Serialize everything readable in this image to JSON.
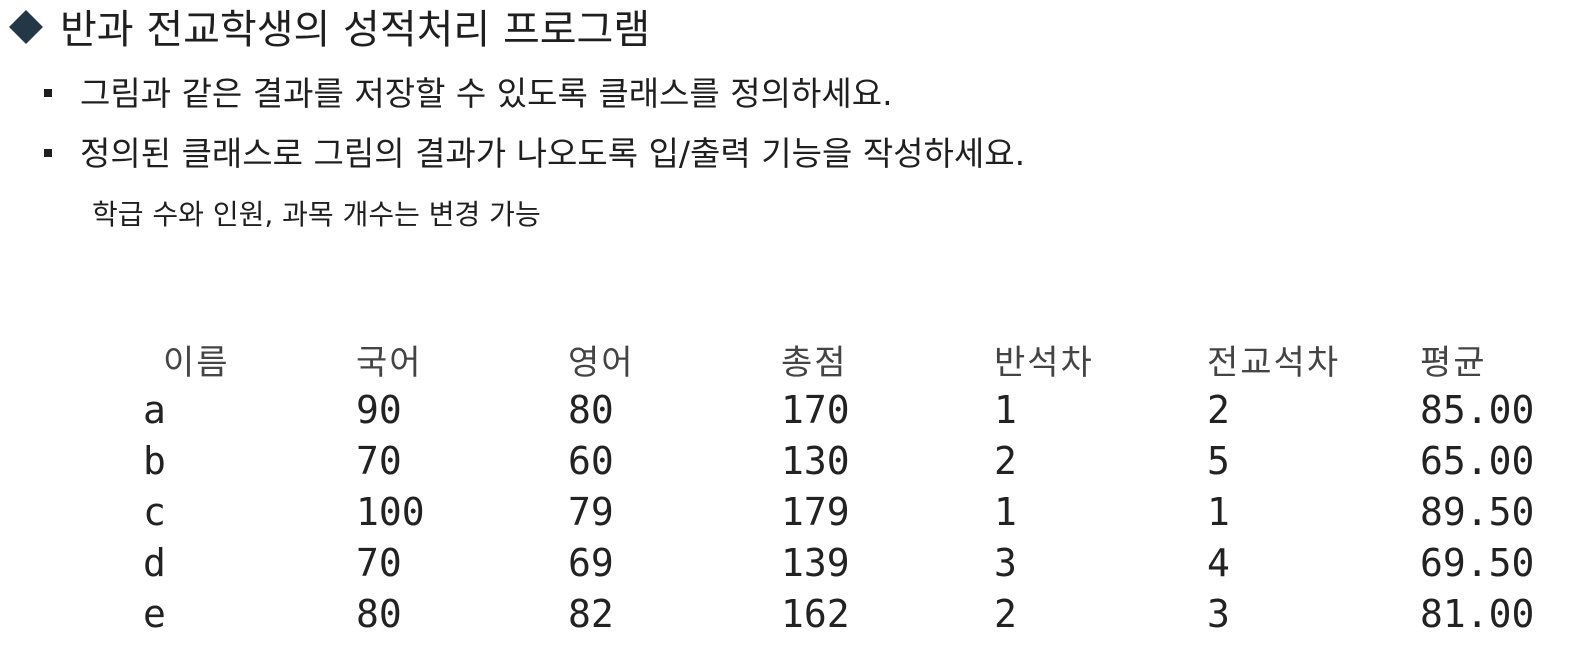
{
  "title": "반과 전교학생의 성적처리 프로그램",
  "bullets": [
    "그림과 같은 결과를 저장할 수 있도록 클래스를 정의하세요.",
    "정의된 클래스로 그림의 결과가 나오도록 입/출력 기능을 작성하세요."
  ],
  "note": "학급 수와 인원, 과목 개수는 변경 가능",
  "table": {
    "headers": [
      "이름",
      "국어",
      "영어",
      "총점",
      "반석차",
      "전교석차",
      "평균"
    ],
    "rows": [
      [
        "a",
        "90",
        "80",
        "170",
        "1",
        "2",
        "85.00"
      ],
      [
        "b",
        "70",
        "60",
        "130",
        "2",
        "5",
        "65.00"
      ],
      [
        "c",
        "100",
        "79",
        "179",
        "1",
        "1",
        "89.50"
      ],
      [
        "d",
        "70",
        "69",
        "139",
        "3",
        "4",
        "69.50"
      ],
      [
        "e",
        "80",
        "82",
        "162",
        "2",
        "3",
        "81.00"
      ]
    ]
  }
}
